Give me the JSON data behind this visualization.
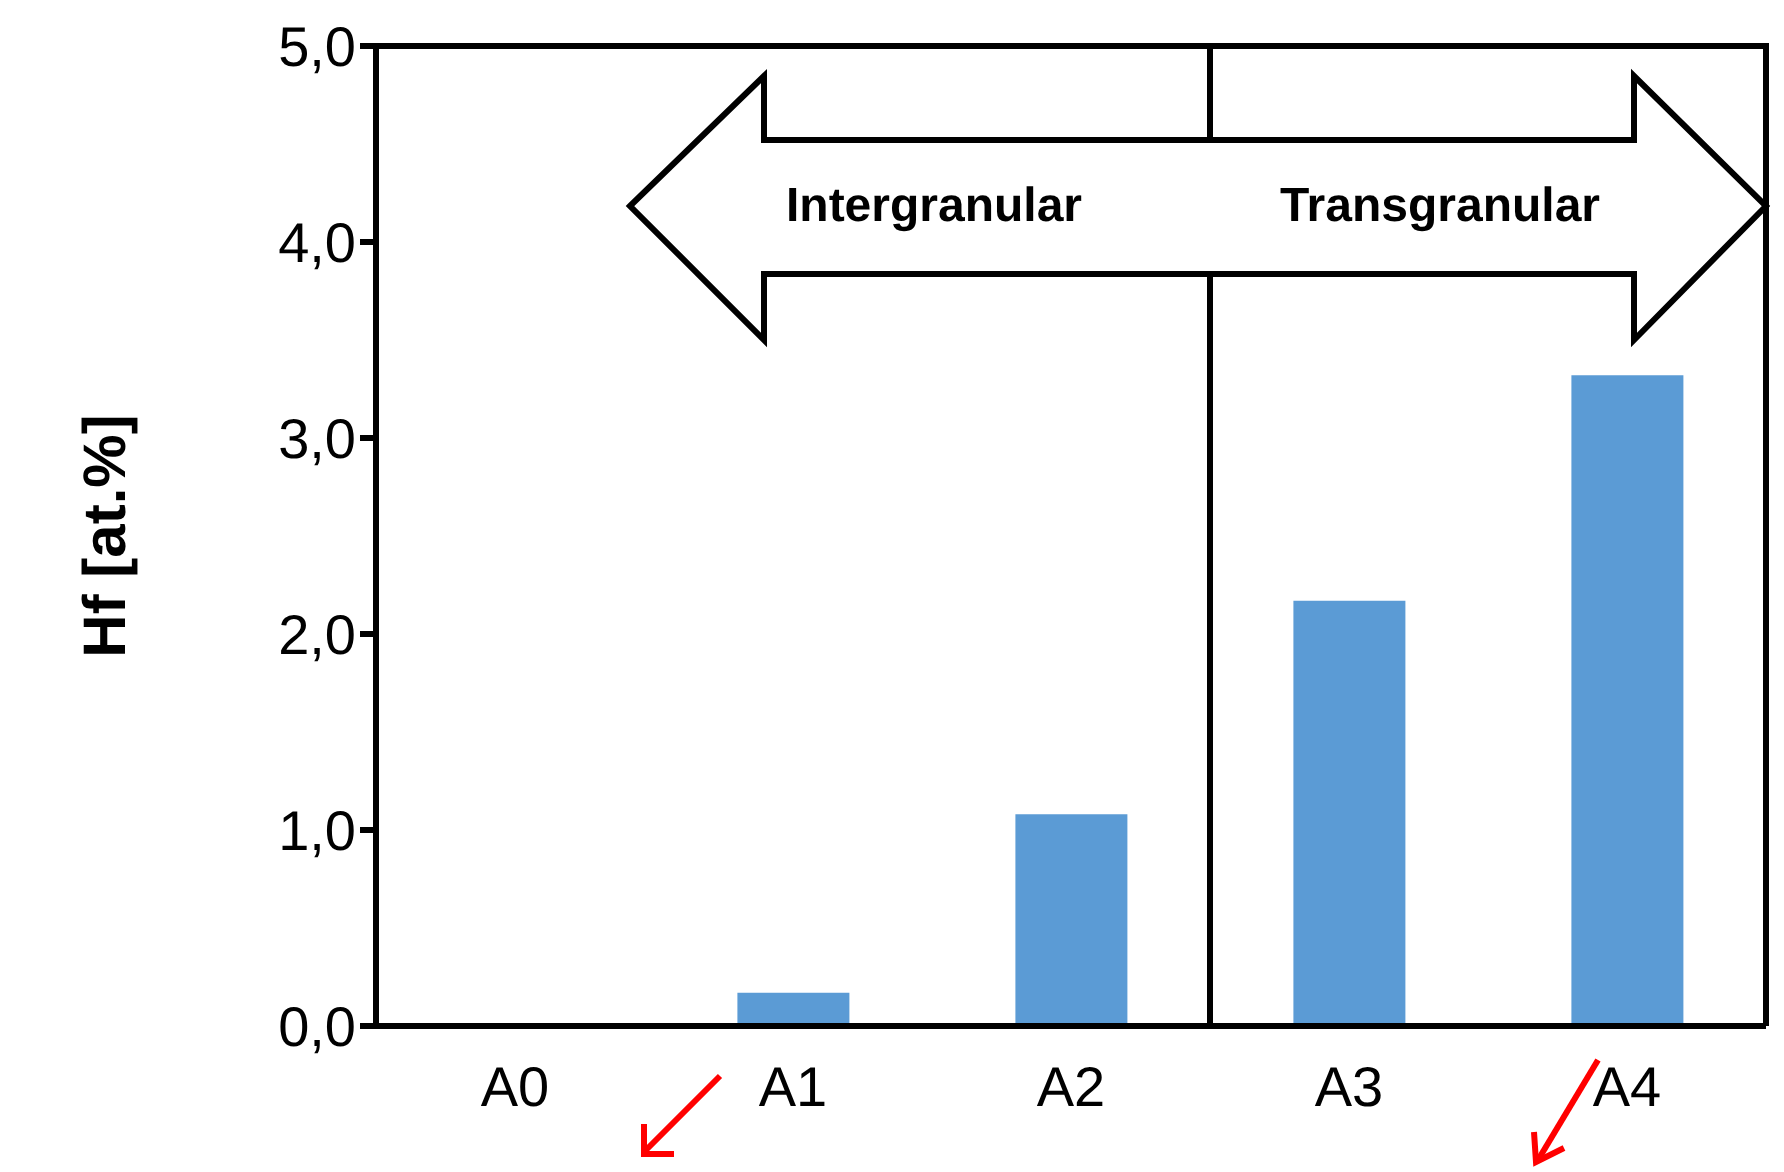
{
  "chart_data": {
    "type": "bar",
    "ylabel": "Hf [at.%]",
    "categories": [
      "A0",
      "A1",
      "A2",
      "A3",
      "A4"
    ],
    "values": [
      0,
      0.17,
      1.08,
      2.17,
      3.32
    ],
    "color": "#5b9bd5",
    "ylim": [
      0,
      5
    ],
    "yticks": [
      {
        "value": 0,
        "label": "0,0"
      },
      {
        "value": 1,
        "label": "1,0"
      },
      {
        "value": 2,
        "label": "2,0"
      },
      {
        "value": 3,
        "label": "3,0"
      },
      {
        "value": 4,
        "label": "4,0"
      },
      {
        "value": 5,
        "label": "5,0"
      }
    ],
    "annotations": [
      "Intergranular",
      "Transgranular"
    ],
    "grid": false,
    "legend": false
  }
}
